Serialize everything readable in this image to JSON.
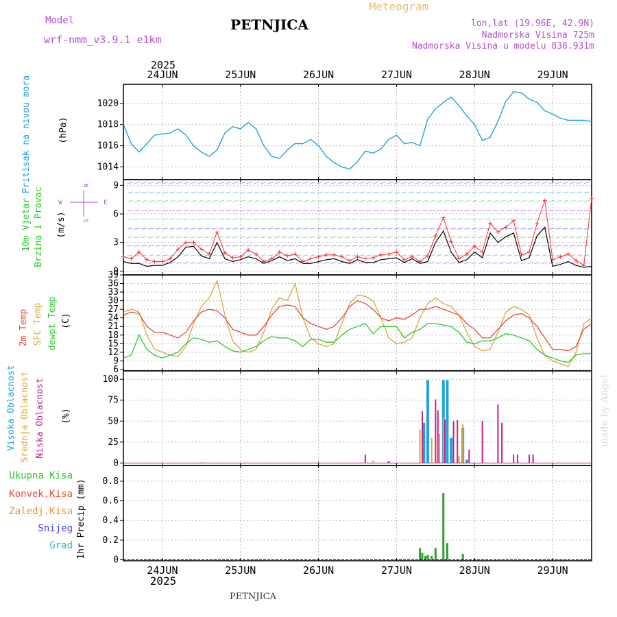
{
  "header": {
    "model_label": "Model",
    "model_name": "wrf-nmm_v3.9.1 e1km",
    "station": "PETNJICA",
    "meteogram_label": "Meteogram",
    "lonlat": "lon,lat (19.96E, 42.9N)",
    "altitude": "Nadmorska Visina 725m",
    "model_altitude": "Nadmorska Visina u modelu 838.931m",
    "year": "2025",
    "footer_station": "PETNJICA",
    "credit": "made by Angel"
  },
  "colors": {
    "pressure": "#1fa3e0",
    "wind_speed": "#000000",
    "gust": "#ff3030",
    "temp2m": "#e8483a",
    "sfc_temp": "#d8a640",
    "dewpoint": "#2ac82a",
    "high_cloud": "#1fa3e0",
    "mid_cloud": "#d8a640",
    "low_cloud": "#c81e8c",
    "total_precip": "#2ca02c",
    "conv_precip": "#e8483a",
    "frozen_precip": "#ff8c1a",
    "snow": "#4040e0",
    "graupel": "#20c0c0",
    "dir_label": "#b050d0"
  },
  "chart_data": [
    {
      "id": "pressure",
      "type": "line",
      "x_labels": [
        "24JUN",
        "25JUN",
        "26JUN",
        "27JUN",
        "28JUN",
        "29JUN"
      ],
      "ylabels": [
        "Pritisak na nivou mora",
        "(hPa)"
      ],
      "ylim": [
        1012.8,
        1021.8
      ],
      "yticks": [
        1014,
        1016,
        1018,
        1020
      ],
      "grid": true,
      "series": [
        {
          "x": [
            23.5,
            23.6,
            23.7,
            23.8,
            23.9,
            24.0,
            24.1,
            24.2,
            24.3,
            24.4,
            24.5,
            24.6,
            24.7,
            24.8,
            24.9,
            25.0,
            25.1,
            25.2,
            25.3,
            25.4,
            25.5,
            25.6,
            25.7,
            25.8,
            25.9,
            26.0,
            26.1,
            26.2,
            26.3,
            26.4,
            26.5,
            26.6,
            26.7,
            26.8,
            26.9,
            27.0,
            27.1,
            27.2,
            27.3,
            27.4,
            27.5,
            27.6,
            27.7,
            27.8,
            27.9,
            28.0,
            28.1,
            28.2,
            28.3,
            28.4,
            28.5,
            28.6,
            28.7,
            28.8,
            28.9,
            29.0,
            29.1,
            29.2,
            29.3,
            29.4,
            29.5
          ],
          "y": [
            1018.0,
            1016.2,
            1015.4,
            1016.2,
            1017.0,
            1017.1,
            1017.2,
            1017.6,
            1017.0,
            1016.0,
            1015.4,
            1015.0,
            1015.6,
            1017.2,
            1017.8,
            1017.6,
            1018.2,
            1017.6,
            1016.0,
            1015.0,
            1014.8,
            1015.6,
            1016.2,
            1016.2,
            1016.6,
            1016.0,
            1015.0,
            1014.4,
            1014.0,
            1013.8,
            1014.5,
            1015.5,
            1015.3,
            1015.7,
            1016.6,
            1017.0,
            1016.2,
            1016.3,
            1016.0,
            1018.5,
            1019.5,
            1020.1,
            1020.6,
            1019.8,
            1018.8,
            1018.0,
            1016.5,
            1016.8,
            1018.3,
            1020.2,
            1021.1,
            1021.0,
            1020.4,
            1020.1,
            1019.3,
            1019.0,
            1018.6,
            1018.4,
            1018.4,
            1018.4,
            1018.3
          ]
        }
      ]
    },
    {
      "id": "wind",
      "type": "line",
      "ylabels": [
        "10m Vjetar",
        "Brzina i Pravac",
        "(m/s)"
      ],
      "ylim": [
        -0.4,
        9.6
      ],
      "yticks": [
        0,
        3,
        6,
        9
      ],
      "direction_axis": [
        "N",
        "W",
        "E",
        "S"
      ],
      "grid": true,
      "series": [
        {
          "name": "wind_speed",
          "x": [
            23.5,
            23.6,
            23.7,
            23.8,
            23.9,
            24.0,
            24.1,
            24.2,
            24.3,
            24.4,
            24.5,
            24.6,
            24.7,
            24.8,
            24.9,
            25.0,
            25.1,
            25.2,
            25.3,
            25.4,
            25.5,
            25.6,
            25.7,
            25.8,
            25.9,
            26.0,
            26.1,
            26.2,
            26.3,
            26.4,
            26.5,
            26.6,
            26.7,
            26.8,
            26.9,
            27.0,
            27.1,
            27.2,
            27.3,
            27.4,
            27.5,
            27.6,
            27.7,
            27.8,
            27.9,
            28.0,
            28.1,
            28.2,
            28.3,
            28.4,
            28.5,
            28.6,
            28.7,
            28.8,
            28.9,
            29.0,
            29.1,
            29.2,
            29.3,
            29.4,
            29.5
          ],
          "y": [
            1.0,
            0.8,
            0.8,
            0.5,
            0.6,
            0.6,
            0.9,
            1.5,
            2.5,
            2.6,
            1.6,
            1.3,
            3.0,
            1.3,
            1.0,
            1.2,
            1.5,
            1.3,
            0.8,
            1.1,
            1.5,
            1.1,
            1.3,
            0.8,
            0.8,
            1.0,
            1.2,
            1.3,
            1.0,
            0.8,
            1.2,
            0.9,
            0.9,
            1.2,
            1.3,
            1.4,
            0.9,
            1.3,
            0.8,
            1.0,
            3.0,
            4.2,
            2.0,
            0.9,
            1.2,
            2.0,
            1.4,
            4.0,
            3.0,
            3.6,
            4.0,
            1.1,
            1.4,
            3.7,
            4.6,
            0.5,
            0.7,
            1.0,
            0.6,
            0.4,
            0.5
          ]
        },
        {
          "name": "gust",
          "x": [
            23.5,
            23.6,
            23.7,
            23.8,
            23.9,
            24.0,
            24.1,
            24.2,
            24.3,
            24.4,
            24.5,
            24.6,
            24.7,
            24.8,
            24.9,
            25.0,
            25.1,
            25.2,
            25.3,
            25.4,
            25.5,
            25.6,
            25.7,
            25.8,
            25.9,
            26.0,
            26.1,
            26.2,
            26.3,
            26.4,
            26.5,
            26.6,
            26.7,
            26.8,
            26.9,
            27.0,
            27.1,
            27.2,
            27.3,
            27.4,
            27.5,
            27.6,
            27.7,
            27.8,
            27.9,
            28.0,
            28.1,
            28.2,
            28.3,
            28.4,
            28.5,
            28.6,
            28.7,
            28.8,
            28.9,
            29.0,
            29.1,
            29.2,
            29.3,
            29.4,
            29.5
          ],
          "y": [
            1.5,
            1.3,
            2.0,
            1.2,
            1.0,
            1.0,
            1.3,
            2.3,
            3.0,
            3.0,
            2.3,
            1.8,
            4.1,
            1.9,
            1.4,
            1.5,
            2.2,
            1.8,
            1.0,
            1.3,
            2.0,
            1.6,
            1.8,
            1.0,
            1.3,
            1.5,
            1.7,
            1.7,
            1.5,
            1.1,
            1.5,
            1.3,
            1.4,
            1.7,
            1.8,
            2.0,
            1.2,
            1.5,
            1.0,
            1.6,
            3.7,
            5.6,
            3.1,
            1.3,
            1.8,
            2.6,
            2.0,
            5.0,
            4.1,
            4.6,
            5.3,
            1.7,
            2.0,
            5.0,
            7.4,
            1.2,
            1.5,
            1.8,
            1.1,
            0.6,
            7.6
          ]
        }
      ]
    },
    {
      "id": "temperature",
      "type": "line",
      "ylabels": [
        "2m Temp",
        "SFC Temp",
        "dewpt Temp",
        "(C)"
      ],
      "ylim": [
        5.5,
        39
      ],
      "yticks": [
        6,
        9,
        12,
        15,
        18,
        21,
        24,
        27,
        30,
        33,
        36,
        39
      ],
      "grid": true,
      "series": [
        {
          "name": "2m Temp",
          "x": [
            23.5,
            23.6,
            23.7,
            23.8,
            23.9,
            24.0,
            24.1,
            24.2,
            24.3,
            24.4,
            24.5,
            24.6,
            24.7,
            24.8,
            24.9,
            25.0,
            25.1,
            25.2,
            25.3,
            25.4,
            25.5,
            25.6,
            25.7,
            25.8,
            25.9,
            26.0,
            26.1,
            26.2,
            26.3,
            26.4,
            26.5,
            26.6,
            26.7,
            26.8,
            26.9,
            27.0,
            27.1,
            27.2,
            27.3,
            27.4,
            27.5,
            27.6,
            27.7,
            27.8,
            27.9,
            28.0,
            28.1,
            28.2,
            28.3,
            28.4,
            28.5,
            28.6,
            28.7,
            28.8,
            28.9,
            29.0,
            29.1,
            29.2,
            29.3,
            29.4,
            29.5
          ],
          "y": [
            25.0,
            26.0,
            25.5,
            21.0,
            19.0,
            19.0,
            18.0,
            17.0,
            19.0,
            23.0,
            26.0,
            27.0,
            26.5,
            24.0,
            20.0,
            19.0,
            18.0,
            18.0,
            21.0,
            25.0,
            28.0,
            28.5,
            28.0,
            24.0,
            22.0,
            21.0,
            20.0,
            21.0,
            24.0,
            28.0,
            30.0,
            29.0,
            27.0,
            24.0,
            23.0,
            24.0,
            23.5,
            25.0,
            27.0,
            27.0,
            28.0,
            27.0,
            26.0,
            25.0,
            22.0,
            20.0,
            17.0,
            17.0,
            20.0,
            23.0,
            25.0,
            25.5,
            24.0,
            21.0,
            17.0,
            13.0,
            13.0,
            12.5,
            14.0,
            20.0,
            22.0
          ]
        },
        {
          "name": "SFC Temp",
          "x": [
            23.5,
            23.6,
            23.7,
            23.8,
            23.9,
            24.0,
            24.1,
            24.2,
            24.3,
            24.4,
            24.5,
            24.6,
            24.7,
            24.8,
            24.9,
            25.0,
            25.1,
            25.2,
            25.3,
            25.4,
            25.5,
            25.6,
            25.7,
            25.8,
            25.9,
            26.0,
            26.1,
            26.2,
            26.3,
            26.4,
            26.5,
            26.6,
            26.7,
            26.8,
            26.9,
            27.0,
            27.1,
            27.2,
            27.3,
            27.4,
            27.5,
            27.6,
            27.7,
            27.8,
            27.9,
            28.0,
            28.1,
            28.2,
            28.3,
            28.4,
            28.5,
            28.6,
            28.7,
            28.8,
            28.9,
            29.0,
            29.1,
            29.2,
            29.3,
            29.4,
            29.5
          ],
          "y": [
            26.0,
            27.0,
            26.0,
            18.0,
            13.0,
            12.0,
            11.0,
            10.5,
            14.0,
            22.0,
            28.0,
            31.0,
            37.0,
            25.0,
            16.0,
            13.0,
            12.0,
            13.0,
            19.0,
            27.0,
            31.0,
            30.0,
            36.0,
            24.0,
            17.0,
            15.0,
            14.0,
            15.0,
            22.0,
            29.0,
            32.0,
            31.5,
            30.0,
            24.0,
            17.0,
            15.0,
            15.5,
            17.0,
            24.0,
            29.0,
            31.0,
            29.0,
            28.0,
            25.0,
            19.0,
            14.0,
            12.5,
            13.0,
            19.0,
            26.0,
            28.0,
            27.0,
            25.0,
            17.0,
            11.0,
            9.0,
            8.0,
            7.0,
            12.0,
            22.0,
            24.0
          ]
        },
        {
          "name": "dewpt Temp",
          "x": [
            23.5,
            23.6,
            23.7,
            23.8,
            23.9,
            24.0,
            24.1,
            24.2,
            24.3,
            24.4,
            24.5,
            24.6,
            24.7,
            24.8,
            24.9,
            25.0,
            25.1,
            25.2,
            25.3,
            25.4,
            25.5,
            25.6,
            25.7,
            25.8,
            25.9,
            26.0,
            26.1,
            26.2,
            26.3,
            26.4,
            26.5,
            26.6,
            26.7,
            26.8,
            26.9,
            27.0,
            27.1,
            27.2,
            27.3,
            27.4,
            27.5,
            27.6,
            27.7,
            27.8,
            27.9,
            28.0,
            28.1,
            28.2,
            28.3,
            28.4,
            28.5,
            28.6,
            28.7,
            28.8,
            28.9,
            29.0,
            29.1,
            29.2,
            29.3,
            29.4,
            29.5
          ],
          "y": [
            10.0,
            11.0,
            18.0,
            13.0,
            11.0,
            10.0,
            11.0,
            12.0,
            15.0,
            17.0,
            16.5,
            15.5,
            16.0,
            14.0,
            12.5,
            12.0,
            13.0,
            14.0,
            16.0,
            17.5,
            17.0,
            17.0,
            16.0,
            14.0,
            16.5,
            16.5,
            15.5,
            15.5,
            18.0,
            20.0,
            21.0,
            22.0,
            18.5,
            21.0,
            21.0,
            21.0,
            17.0,
            19.0,
            20.0,
            22.0,
            22.0,
            21.5,
            21.0,
            19.0,
            15.5,
            15.0,
            16.0,
            16.0,
            17.0,
            18.5,
            18.0,
            17.0,
            16.0,
            13.0,
            11.0,
            10.0,
            9.0,
            8.5,
            11.0,
            11.5,
            11.5
          ]
        }
      ]
    },
    {
      "id": "clouds",
      "type": "bar",
      "ylabels": [
        "Visoka Oblacnost",
        "Srednja Oblacnost",
        "Niska Oblacnost",
        "(%)"
      ],
      "ylim": [
        -3,
        110
      ],
      "yticks": [
        0,
        25,
        50,
        75,
        100
      ],
      "grid": true,
      "series": [
        {
          "name": "Visoka Oblacnost",
          "x": [
            26.9,
            27.35,
            27.4,
            27.6,
            27.65,
            27.7,
            27.85,
            27.9
          ],
          "y": [
            2,
            48,
            99,
            99,
            99,
            30,
            42,
            4
          ]
        },
        {
          "name": "Srednja Oblacnost",
          "x": [
            24.5,
            26.0,
            26.7,
            27.3,
            27.45,
            27.55,
            27.6,
            27.8,
            27.85
          ],
          "y": [
            1,
            2,
            3,
            40,
            30,
            35,
            54,
            8,
            46
          ]
        },
        {
          "name": "Niska Oblacnost",
          "x": [
            26.6,
            27.33,
            27.5,
            27.53,
            27.62,
            27.73,
            27.78,
            27.93,
            28.1,
            28.3,
            28.35,
            28.5,
            28.55,
            28.7,
            28.75
          ],
          "y": [
            10,
            62,
            76,
            63,
            52,
            50,
            51,
            16,
            50,
            70,
            48,
            10,
            10,
            10,
            10
          ]
        }
      ]
    },
    {
      "id": "precip",
      "type": "bar",
      "ylabels": [
        "Ukupna Kisa",
        "Konvek.Kisa",
        "Zaledj.Kisa",
        "Snijeg",
        "Grad",
        "1hr Precip (mm)"
      ],
      "x_labels": [
        "24JUN",
        "25JUN",
        "26JUN",
        "27JUN",
        "28JUN",
        "29JUN"
      ],
      "ylim": [
        -0.01,
        0.96
      ],
      "yticks": [
        0,
        0.2,
        0.4,
        0.6,
        0.8
      ],
      "grid": true,
      "series": [
        {
          "name": "Ukupna Kisa",
          "x": [
            27.3,
            27.33,
            27.37,
            27.4,
            27.45,
            27.5,
            27.6,
            27.65,
            27.85
          ],
          "y": [
            0.12,
            0.07,
            0.04,
            0.05,
            0.04,
            0.12,
            0.68,
            0.17,
            0.06
          ]
        }
      ]
    }
  ]
}
